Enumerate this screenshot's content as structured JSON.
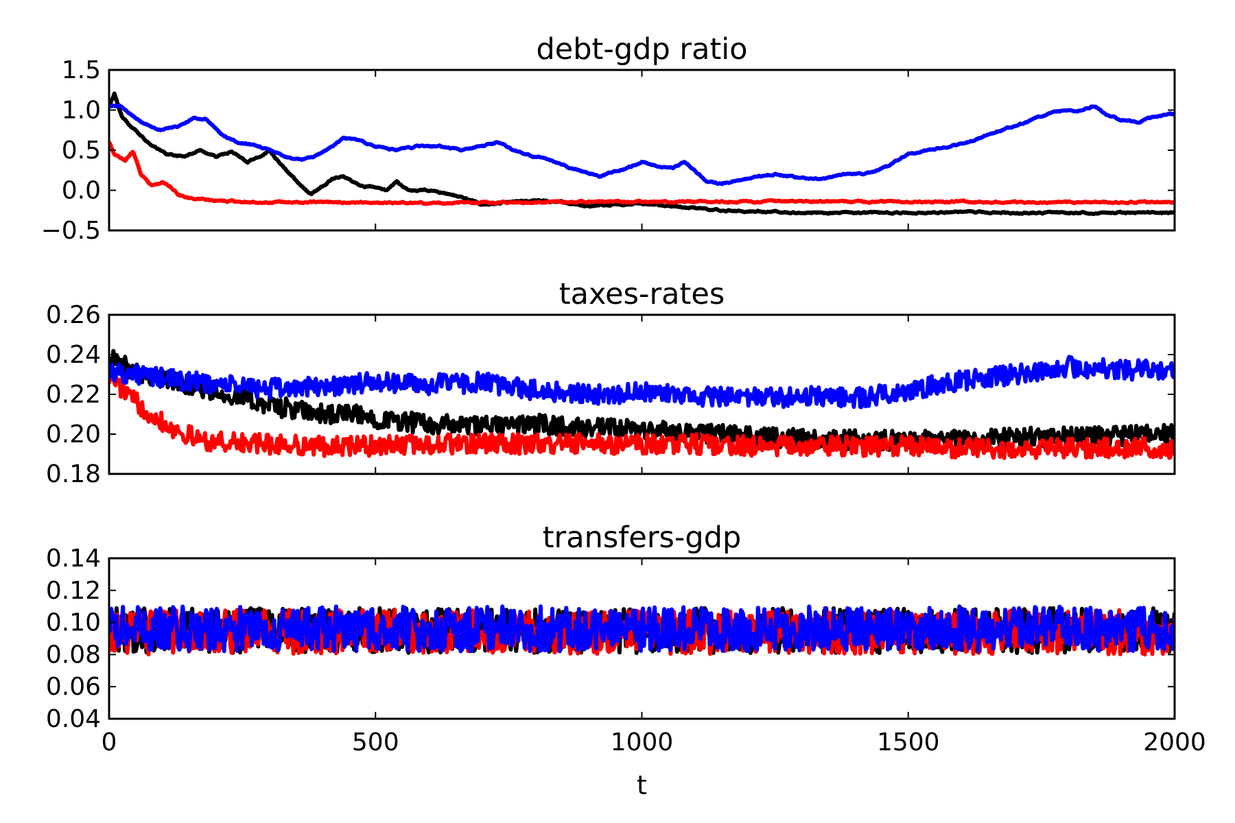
{
  "chart_data": [
    {
      "type": "line",
      "title": "debt-gdp ratio",
      "xlabel": "",
      "ylabel": "",
      "xlim": [
        0,
        2000
      ],
      "ylim": [
        -0.5,
        1.5
      ],
      "yticks": [
        "−0.5",
        "0.0",
        "0.5",
        "1.0",
        "1.5"
      ],
      "ytick_values": [
        -0.5,
        0.0,
        0.5,
        1.0,
        1.5
      ],
      "xticks_shown": false,
      "grid": false,
      "noise": 0.015,
      "series": [
        {
          "color": "#000000",
          "points": [
            [
              0,
              1.05
            ],
            [
              10,
              1.2
            ],
            [
              25,
              0.9
            ],
            [
              50,
              0.75
            ],
            [
              80,
              0.55
            ],
            [
              110,
              0.45
            ],
            [
              140,
              0.42
            ],
            [
              170,
              0.5
            ],
            [
              200,
              0.42
            ],
            [
              230,
              0.48
            ],
            [
              260,
              0.35
            ],
            [
              290,
              0.45
            ],
            [
              300,
              0.5
            ],
            [
              320,
              0.35
            ],
            [
              340,
              0.2
            ],
            [
              360,
              0.05
            ],
            [
              380,
              -0.05
            ],
            [
              400,
              0.05
            ],
            [
              420,
              0.15
            ],
            [
              440,
              0.18
            ],
            [
              460,
              0.1
            ],
            [
              480,
              0.05
            ],
            [
              500,
              0.05
            ],
            [
              520,
              0.0
            ],
            [
              540,
              0.1
            ],
            [
              560,
              0.0
            ],
            [
              600,
              0.0
            ],
            [
              640,
              -0.05
            ],
            [
              670,
              -0.1
            ],
            [
              700,
              -0.18
            ],
            [
              750,
              -0.15
            ],
            [
              800,
              -0.12
            ],
            [
              850,
              -0.15
            ],
            [
              900,
              -0.2
            ],
            [
              950,
              -0.18
            ],
            [
              1000,
              -0.16
            ],
            [
              1050,
              -0.2
            ],
            [
              1100,
              -0.22
            ],
            [
              1150,
              -0.25
            ],
            [
              1200,
              -0.26
            ],
            [
              1300,
              -0.28
            ],
            [
              1400,
              -0.28
            ],
            [
              1500,
              -0.28
            ],
            [
              1600,
              -0.27
            ],
            [
              1700,
              -0.28
            ],
            [
              1800,
              -0.28
            ],
            [
              1900,
              -0.28
            ],
            [
              2000,
              -0.28
            ]
          ]
        },
        {
          "color": "#ff0000",
          "points": [
            [
              0,
              0.6
            ],
            [
              10,
              0.45
            ],
            [
              30,
              0.38
            ],
            [
              45,
              0.5
            ],
            [
              60,
              0.2
            ],
            [
              80,
              0.05
            ],
            [
              100,
              0.1
            ],
            [
              115,
              0.05
            ],
            [
              130,
              -0.05
            ],
            [
              150,
              -0.1
            ],
            [
              200,
              -0.13
            ],
            [
              250,
              -0.14
            ],
            [
              300,
              -0.15
            ],
            [
              400,
              -0.15
            ],
            [
              500,
              -0.15
            ],
            [
              600,
              -0.16
            ],
            [
              700,
              -0.15
            ],
            [
              800,
              -0.15
            ],
            [
              900,
              -0.14
            ],
            [
              1000,
              -0.14
            ],
            [
              1100,
              -0.14
            ],
            [
              1200,
              -0.14
            ],
            [
              1300,
              -0.14
            ],
            [
              1400,
              -0.14
            ],
            [
              1500,
              -0.14
            ],
            [
              1600,
              -0.14
            ],
            [
              1700,
              -0.15
            ],
            [
              1800,
              -0.15
            ],
            [
              1900,
              -0.15
            ],
            [
              2000,
              -0.15
            ]
          ]
        },
        {
          "color": "#0000ff",
          "points": [
            [
              0,
              1.05
            ],
            [
              20,
              1.05
            ],
            [
              60,
              0.85
            ],
            [
              100,
              0.75
            ],
            [
              130,
              0.8
            ],
            [
              160,
              0.9
            ],
            [
              180,
              0.9
            ],
            [
              210,
              0.7
            ],
            [
              240,
              0.6
            ],
            [
              280,
              0.55
            ],
            [
              320,
              0.45
            ],
            [
              350,
              0.38
            ],
            [
              380,
              0.4
            ],
            [
              420,
              0.55
            ],
            [
              440,
              0.65
            ],
            [
              470,
              0.62
            ],
            [
              500,
              0.55
            ],
            [
              540,
              0.5
            ],
            [
              580,
              0.55
            ],
            [
              620,
              0.55
            ],
            [
              660,
              0.5
            ],
            [
              700,
              0.55
            ],
            [
              730,
              0.6
            ],
            [
              760,
              0.5
            ],
            [
              800,
              0.42
            ],
            [
              840,
              0.35
            ],
            [
              880,
              0.25
            ],
            [
              920,
              0.18
            ],
            [
              960,
              0.25
            ],
            [
              1000,
              0.35
            ],
            [
              1030,
              0.3
            ],
            [
              1060,
              0.28
            ],
            [
              1080,
              0.35
            ],
            [
              1100,
              0.25
            ],
            [
              1120,
              0.12
            ],
            [
              1150,
              0.08
            ],
            [
              1200,
              0.15
            ],
            [
              1250,
              0.2
            ],
            [
              1300,
              0.15
            ],
            [
              1340,
              0.15
            ],
            [
              1380,
              0.2
            ],
            [
              1420,
              0.2
            ],
            [
              1460,
              0.3
            ],
            [
              1500,
              0.45
            ],
            [
              1540,
              0.5
            ],
            [
              1580,
              0.55
            ],
            [
              1620,
              0.62
            ],
            [
              1660,
              0.72
            ],
            [
              1700,
              0.8
            ],
            [
              1740,
              0.9
            ],
            [
              1780,
              0.98
            ],
            [
              1820,
              1.0
            ],
            [
              1850,
              1.05
            ],
            [
              1870,
              0.95
            ],
            [
              1900,
              0.88
            ],
            [
              1930,
              0.85
            ],
            [
              1960,
              0.92
            ],
            [
              2000,
              0.95
            ]
          ]
        }
      ]
    },
    {
      "type": "line",
      "title": "taxes-rates",
      "xlabel": "",
      "ylabel": "",
      "xlim": [
        0,
        2000
      ],
      "ylim": [
        0.18,
        0.26
      ],
      "yticks": [
        "0.18",
        "0.20",
        "0.22",
        "0.24",
        "0.26"
      ],
      "ytick_values": [
        0.18,
        0.2,
        0.22,
        0.24,
        0.26
      ],
      "xticks_shown": false,
      "grid": false,
      "noise": 0.005,
      "series": [
        {
          "color": "#000000",
          "points": [
            [
              0,
              0.238
            ],
            [
              50,
              0.232
            ],
            [
              100,
              0.228
            ],
            [
              150,
              0.225
            ],
            [
              200,
              0.222
            ],
            [
              250,
              0.218
            ],
            [
              300,
              0.215
            ],
            [
              350,
              0.212
            ],
            [
              400,
              0.21
            ],
            [
              450,
              0.21
            ],
            [
              500,
              0.208
            ],
            [
              600,
              0.205
            ],
            [
              700,
              0.204
            ],
            [
              800,
              0.205
            ],
            [
              900,
              0.203
            ],
            [
              1000,
              0.202
            ],
            [
              1100,
              0.201
            ],
            [
              1200,
              0.199
            ],
            [
              1300,
              0.198
            ],
            [
              1400,
              0.197
            ],
            [
              1500,
              0.197
            ],
            [
              1600,
              0.197
            ],
            [
              1700,
              0.198
            ],
            [
              1800,
              0.199
            ],
            [
              1900,
              0.199
            ],
            [
              2000,
              0.2
            ]
          ]
        },
        {
          "color": "#ff0000",
          "points": [
            [
              0,
              0.23
            ],
            [
              40,
              0.218
            ],
            [
              80,
              0.21
            ],
            [
              120,
              0.203
            ],
            [
              160,
              0.198
            ],
            [
              200,
              0.196
            ],
            [
              300,
              0.195
            ],
            [
              400,
              0.194
            ],
            [
              500,
              0.194
            ],
            [
              600,
              0.195
            ],
            [
              700,
              0.195
            ],
            [
              800,
              0.195
            ],
            [
              900,
              0.195
            ],
            [
              1000,
              0.195
            ],
            [
              1100,
              0.195
            ],
            [
              1200,
              0.194
            ],
            [
              1300,
              0.194
            ],
            [
              1400,
              0.194
            ],
            [
              1500,
              0.194
            ],
            [
              1600,
              0.193
            ],
            [
              1700,
              0.193
            ],
            [
              1800,
              0.193
            ],
            [
              1900,
              0.193
            ],
            [
              2000,
              0.193
            ]
          ]
        },
        {
          "color": "#0000ff",
          "points": [
            [
              0,
              0.232
            ],
            [
              100,
              0.228
            ],
            [
              200,
              0.225
            ],
            [
              300,
              0.223
            ],
            [
              400,
              0.224
            ],
            [
              500,
              0.226
            ],
            [
              600,
              0.225
            ],
            [
              700,
              0.226
            ],
            [
              800,
              0.222
            ],
            [
              900,
              0.22
            ],
            [
              1000,
              0.221
            ],
            [
              1100,
              0.219
            ],
            [
              1200,
              0.218
            ],
            [
              1300,
              0.219
            ],
            [
              1400,
              0.218
            ],
            [
              1500,
              0.222
            ],
            [
              1600,
              0.227
            ],
            [
              1700,
              0.23
            ],
            [
              1800,
              0.234
            ],
            [
              1900,
              0.232
            ],
            [
              2000,
              0.233
            ]
          ]
        }
      ]
    },
    {
      "type": "line",
      "title": "transfers-gdp",
      "xlabel": "t",
      "ylabel": "",
      "xlim": [
        0,
        2000
      ],
      "ylim": [
        0.04,
        0.14
      ],
      "yticks": [
        "0.04",
        "0.06",
        "0.08",
        "0.10",
        "0.12",
        "0.14"
      ],
      "ytick_values": [
        0.04,
        0.06,
        0.08,
        0.1,
        0.12,
        0.14
      ],
      "xticks": [
        "0",
        "500",
        "1000",
        "1500",
        "2000"
      ],
      "xtick_values": [
        0,
        500,
        1000,
        1500,
        2000
      ],
      "xticks_shown": true,
      "grid": false,
      "noise": 0.014,
      "series": [
        {
          "color": "#000000",
          "points": [
            [
              0,
              0.095
            ],
            [
              2000,
              0.095
            ]
          ]
        },
        {
          "color": "#ff0000",
          "points": [
            [
              0,
              0.094
            ],
            [
              2000,
              0.094
            ]
          ]
        },
        {
          "color": "#0000ff",
          "points": [
            [
              0,
              0.096
            ],
            [
              2000,
              0.096
            ]
          ]
        }
      ]
    }
  ]
}
